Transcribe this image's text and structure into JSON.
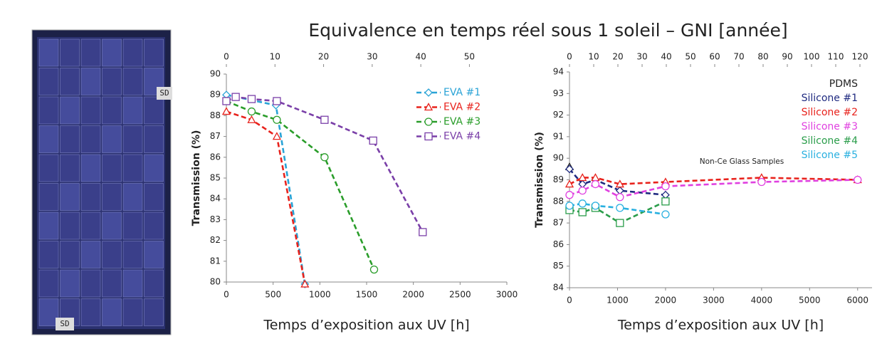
{
  "title": "Equivalence en temps réel sous 1 soleil – GNI [année]",
  "photo": {
    "labels": [
      "SD",
      "SD"
    ]
  },
  "chart_data": [
    {
      "type": "line",
      "xlabel": "Temps d’exposition aux UV [h]",
      "ylabel": "Transmission (%)",
      "xlim": [
        0,
        3000
      ],
      "xticks": [
        0,
        500,
        1000,
        1500,
        2000,
        2500,
        3000
      ],
      "ylim": [
        80,
        90
      ],
      "yticks": [
        80,
        81,
        82,
        83,
        84,
        85,
        86,
        87,
        88,
        89,
        90
      ],
      "x2lim": [
        0,
        57.7
      ],
      "x2ticks": [
        0,
        10,
        20,
        30,
        40,
        50
      ],
      "legend": "upper right",
      "series": [
        {
          "name": "EVA #1",
          "color": "#29a3d6",
          "marker": "diamond",
          "x": [
            0,
            530,
            840
          ],
          "values": [
            89.0,
            88.5,
            79.9
          ]
        },
        {
          "name": "EVA #2",
          "color": "#e8221c",
          "marker": "triangle",
          "x": [
            0,
            270,
            540,
            840
          ],
          "values": [
            88.2,
            87.8,
            87.0,
            79.9
          ]
        },
        {
          "name": "EVA #3",
          "color": "#2a9d2a",
          "marker": "circle",
          "x": [
            0,
            270,
            540,
            1050,
            1580
          ],
          "values": [
            88.7,
            88.2,
            87.8,
            86.0,
            80.6
          ]
        },
        {
          "name": "EVA #4",
          "color": "#7a3fa8",
          "marker": "square",
          "x": [
            0,
            100,
            270,
            540,
            1050,
            1570,
            2100
          ],
          "values": [
            88.7,
            88.9,
            88.8,
            88.7,
            87.8,
            86.8,
            82.4
          ]
        }
      ]
    },
    {
      "type": "line",
      "xlabel": "Temps d’exposition aux UV [h]",
      "ylabel": "Transmission (%)",
      "xlim": [
        0,
        6300
      ],
      "xticks": [
        0,
        1000,
        2000,
        3000,
        4000,
        5000,
        6000
      ],
      "ylim": [
        84,
        94
      ],
      "yticks": [
        84,
        85,
        86,
        87,
        88,
        89,
        90,
        91,
        92,
        93,
        94
      ],
      "x2lim": [
        0,
        125
      ],
      "x2ticks": [
        0,
        10,
        20,
        30,
        40,
        50,
        60,
        70,
        80,
        90,
        100,
        110,
        120
      ],
      "legend": "upper right",
      "annotation": "Non-Ce Glass Samples",
      "series": [
        {
          "name": "PDMS",
          "color": "#222222",
          "marker": "triangle",
          "x": [
            0
          ],
          "values": [
            89.6
          ]
        },
        {
          "name": "Silicone #1",
          "color": "#1f2a80",
          "marker": "diamond",
          "x": [
            0,
            270,
            540,
            1050,
            2000
          ],
          "values": [
            89.5,
            88.8,
            89.0,
            88.5,
            88.3
          ]
        },
        {
          "name": "Silicone #2",
          "color": "#e8221c",
          "marker": "triangle",
          "x": [
            0,
            270,
            540,
            1050,
            2000,
            4000,
            6000
          ],
          "values": [
            88.8,
            89.1,
            89.1,
            88.8,
            88.9,
            89.1,
            89.0
          ]
        },
        {
          "name": "Silicone #3",
          "color": "#e040e0",
          "marker": "circle",
          "x": [
            0,
            270,
            540,
            1050,
            2000,
            4000,
            6000
          ],
          "values": [
            88.3,
            88.5,
            88.8,
            88.2,
            88.7,
            88.9,
            89.0
          ]
        },
        {
          "name": "Silicone #4",
          "color": "#2a9d4a",
          "marker": "square",
          "x": [
            0,
            270,
            540,
            1050,
            2000
          ],
          "values": [
            87.6,
            87.5,
            87.7,
            87.0,
            88.0
          ]
        },
        {
          "name": "Silicone #5",
          "color": "#29b0e0",
          "marker": "circle",
          "x": [
            0,
            270,
            540,
            1050,
            2000
          ],
          "values": [
            87.8,
            87.9,
            87.8,
            87.7,
            87.4
          ]
        }
      ]
    }
  ]
}
